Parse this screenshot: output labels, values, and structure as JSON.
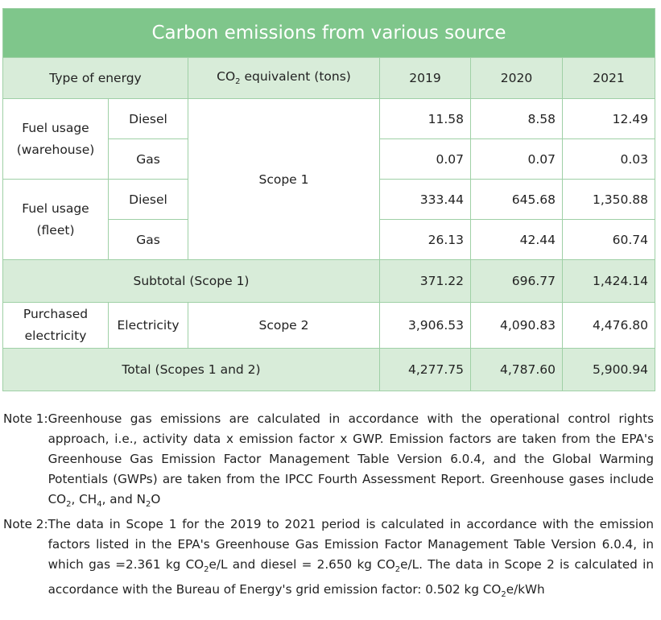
{
  "table": {
    "title": "Carbon emissions from various source",
    "headers": {
      "type_of_energy": "Type of energy",
      "co2_prefix": "CO",
      "co2_sub": "2",
      "co2_suffix": " equivalent (tons)",
      "years": [
        "2019",
        "2020",
        "2021"
      ]
    },
    "groups": {
      "warehouse_label_line1": "Fuel usage",
      "warehouse_label_line2": "(warehouse)",
      "fleet_label_line1": "Fuel usage",
      "fleet_label_line2": "(fleet)",
      "scope1": "Scope 1",
      "purchased_line1": "Purchased",
      "purchased_line2": "electricity",
      "electricity": "Electricity",
      "scope2": "Scope 2"
    },
    "rows": [
      {
        "source": "Diesel",
        "v2019": "11.58",
        "v2020": "8.58",
        "v2021": "12.49"
      },
      {
        "source": "Gas",
        "v2019": "0.07",
        "v2020": "0.07",
        "v2021": "0.03"
      },
      {
        "source": "Diesel",
        "v2019": "333.44",
        "v2020": "645.68",
        "v2021": "1,350.88"
      },
      {
        "source": "Gas",
        "v2019": "26.13",
        "v2020": "42.44",
        "v2021": "60.74"
      }
    ],
    "subtotal": {
      "label": "Subtotal (Scope 1)",
      "v2019": "371.22",
      "v2020": "696.77",
      "v2021": "1,424.14"
    },
    "electricity_values": {
      "v2019": "3,906.53",
      "v2020": "4,090.83",
      "v2021": "4,476.80"
    },
    "total": {
      "label": "Total (Scopes 1 and 2)",
      "v2019": "4,277.75",
      "v2020": "4,787.60",
      "v2021": "5,900.94"
    }
  },
  "notes": {
    "note1_label": "Note 1: ",
    "note1_a": "Greenhouse gas emissions are calculated in accordance with the operational control rights approach, i.e., activity data x emission factor x GWP. Emission factors are taken from the EPA's Greenhouse Gas Emission Factor Management Table Version 6.0.4, and the Global Warming Potentials (GWPs) are taken from the IPCC Fourth Assessment Report. Greenhouse gases include CO",
    "note1_sub1": "2",
    "note1_b": ", CH",
    "note1_sub2": "4",
    "note1_c": ", and N",
    "note1_sub3": "2",
    "note1_d": "O",
    "note2_label": "Note 2: ",
    "note2_a": "The data in Scope 1 for the 2019 to 2021 period is calculated in accordance with the emission factors listed in the EPA's Greenhouse Gas Emission Factor Management Table Version 6.0.4, in which gas =2.361 kg CO",
    "note2_sub1": "2",
    "note2_b": "e/L and diesel = 2.650 kg CO",
    "note2_sub2": "2",
    "note2_c": "e/L. The data in Scope 2 is calculated in accordance with the Bureau of Energy's grid emission factor: 0.502 kg CO",
    "note2_sub3": "2",
    "note2_d": "e/kWh"
  }
}
